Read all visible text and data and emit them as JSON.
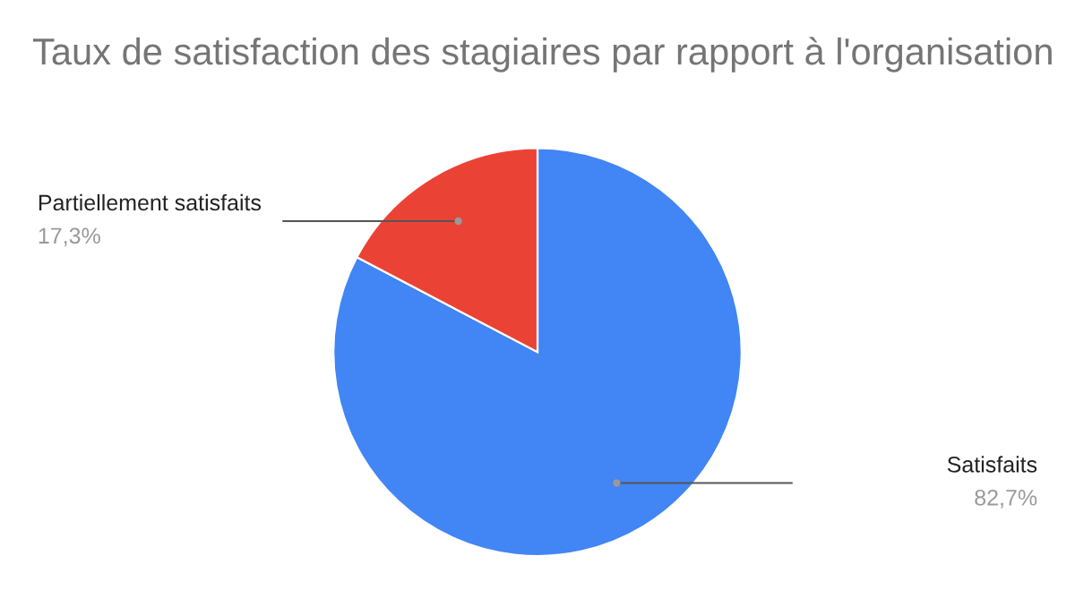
{
  "chart_data": {
    "type": "pie",
    "title": "Taux de satisfaction des stagiaires par rapport à l'organisation",
    "categories": [
      "Satisfaits",
      "Partiellement satisfaits"
    ],
    "values": [
      82.7,
      17.3
    ],
    "colors": [
      "#4285f4",
      "#ea4335"
    ],
    "value_labels": [
      "82,7%",
      "17,3%"
    ]
  }
}
